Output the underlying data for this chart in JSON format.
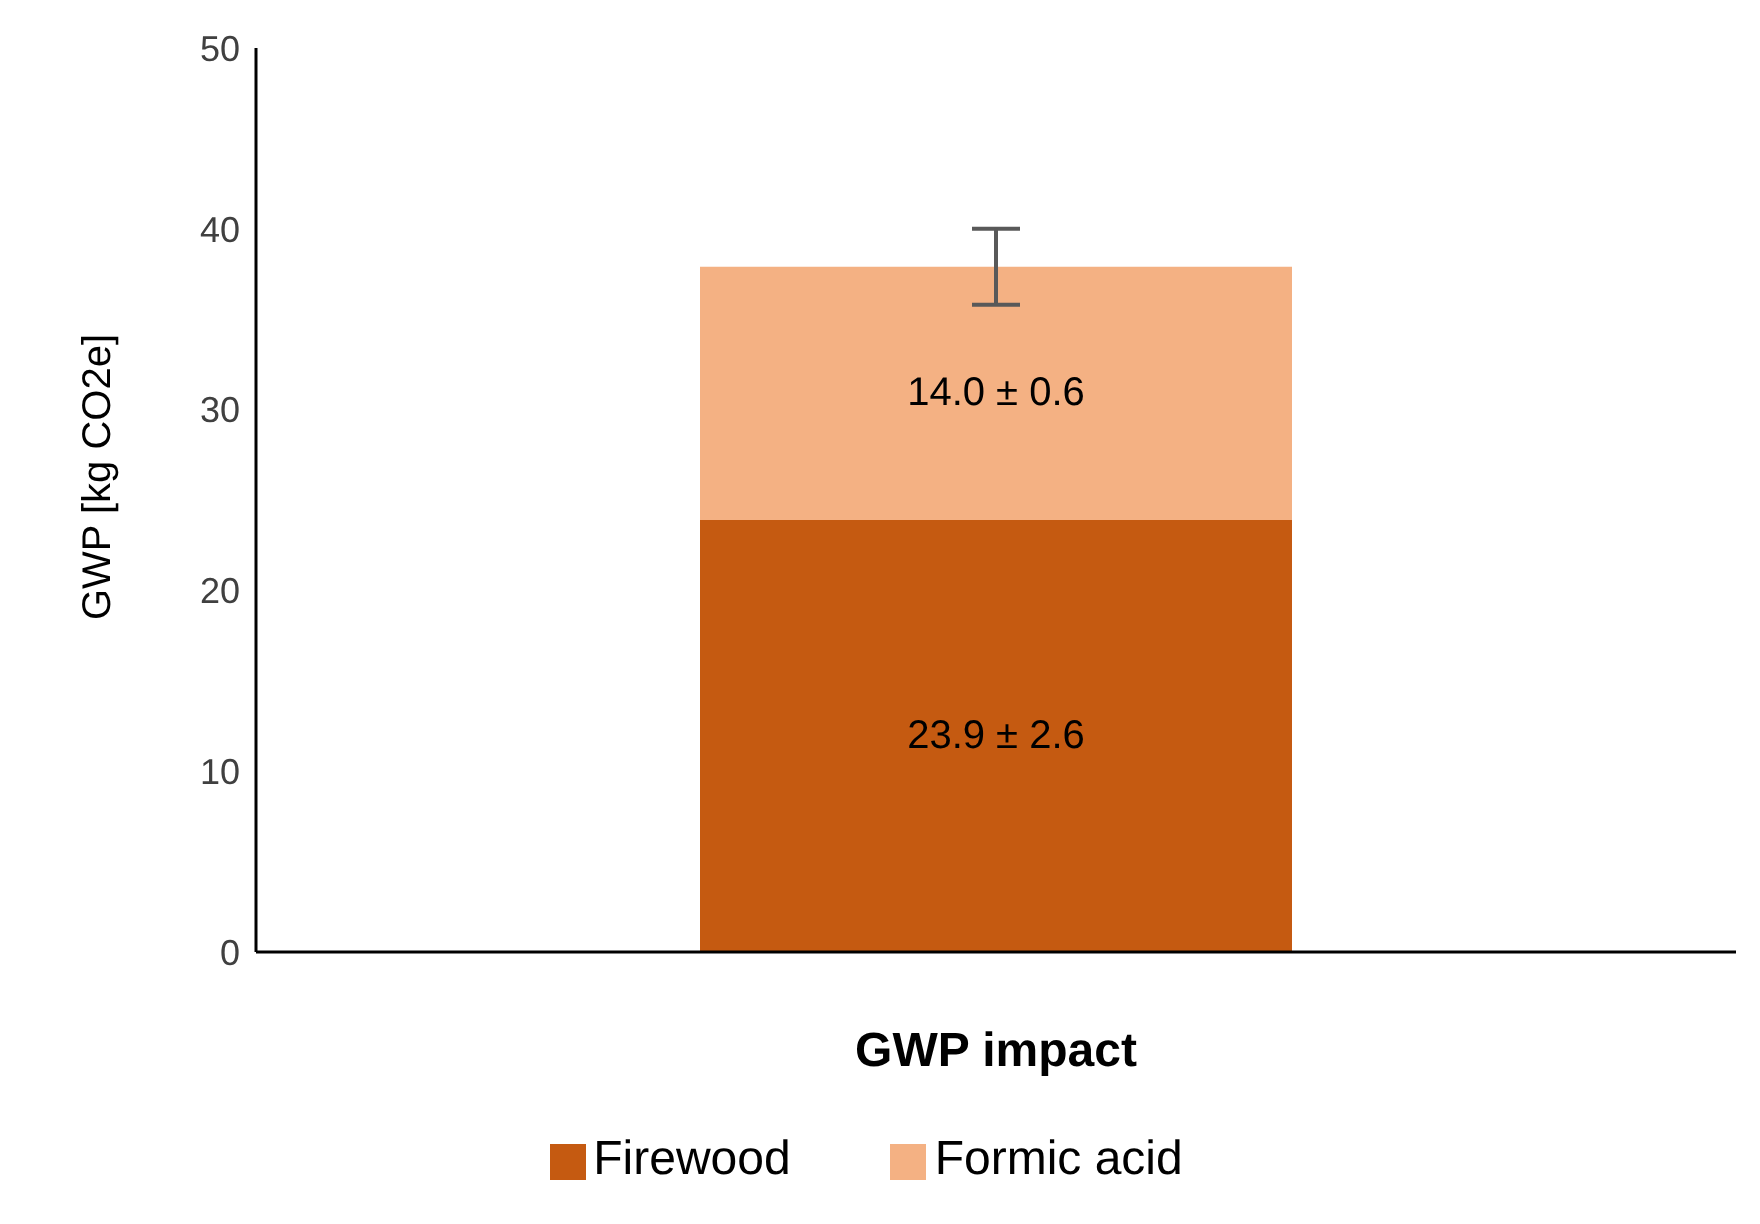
{
  "chart_data": {
    "type": "bar",
    "stacked": true,
    "xlabel": "GWP impact",
    "ylabel": "GWP [kg CO2e]",
    "categories": [
      null
    ],
    "series": [
      {
        "name": "Firewood",
        "color": "#c55a11",
        "values": [
          23.9
        ],
        "value_labels": [
          "23.9 ± 2.6"
        ]
      },
      {
        "name": "Formic acid",
        "color": "#f4b183",
        "values": [
          14.0
        ],
        "value_labels": [
          "14.0 ± 0.6"
        ],
        "errors": [
          2.1
        ]
      }
    ],
    "ylim": [
      0,
      50
    ],
    "yticks": [
      0,
      10,
      20,
      30,
      40,
      50
    ],
    "grid": false,
    "legend": "bottom"
  }
}
